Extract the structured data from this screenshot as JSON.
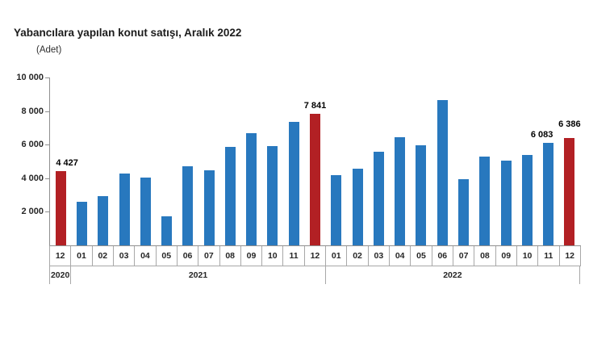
{
  "header": {
    "title": "Yabancılara yapılan konut satışı, Aralık 2022",
    "unit": "(Adet)"
  },
  "chart_data": {
    "type": "bar",
    "title": "Yabancılara yapılan konut satışı, Aralık 2022",
    "ylabel": "(Adet)",
    "xlabel": "",
    "ylim": [
      0,
      10000
    ],
    "grid": false,
    "legend": "none",
    "colors": {
      "default": "#2878BE",
      "highlight": "#B22024"
    },
    "yticks": [
      {
        "value": 2000,
        "label": "2 000"
      },
      {
        "value": 4000,
        "label": "4 000"
      },
      {
        "value": 6000,
        "label": "6 000"
      },
      {
        "value": 8000,
        "label": "8 000"
      },
      {
        "value": 10000,
        "label": "10 000"
      }
    ],
    "year_groups": [
      {
        "year": "2020",
        "count": 1
      },
      {
        "year": "2021",
        "count": 12
      },
      {
        "year": "2022",
        "count": 12
      }
    ],
    "points": [
      {
        "year": "2020",
        "month": "12",
        "value": 4427,
        "highlight": true,
        "label": "4 427",
        "label_dx": 8
      },
      {
        "year": "2021",
        "month": "01",
        "value": 2610,
        "highlight": false
      },
      {
        "year": "2021",
        "month": "02",
        "value": 2950,
        "highlight": false
      },
      {
        "year": "2021",
        "month": "03",
        "value": 4270,
        "highlight": false
      },
      {
        "year": "2021",
        "month": "04",
        "value": 4060,
        "highlight": false
      },
      {
        "year": "2021",
        "month": "05",
        "value": 1710,
        "highlight": false
      },
      {
        "year": "2021",
        "month": "06",
        "value": 4730,
        "highlight": false
      },
      {
        "year": "2021",
        "month": "07",
        "value": 4490,
        "highlight": false
      },
      {
        "year": "2021",
        "month": "08",
        "value": 5860,
        "highlight": false
      },
      {
        "year": "2021",
        "month": "09",
        "value": 6660,
        "highlight": false
      },
      {
        "year": "2021",
        "month": "10",
        "value": 5900,
        "highlight": false
      },
      {
        "year": "2021",
        "month": "11",
        "value": 7360,
        "highlight": false
      },
      {
        "year": "2021",
        "month": "12",
        "value": 7841,
        "highlight": true,
        "label": "7 841"
      },
      {
        "year": "2022",
        "month": "01",
        "value": 4190,
        "highlight": false
      },
      {
        "year": "2022",
        "month": "02",
        "value": 4590,
        "highlight": false
      },
      {
        "year": "2022",
        "month": "03",
        "value": 5570,
        "highlight": false
      },
      {
        "year": "2022",
        "month": "04",
        "value": 6450,
        "highlight": false
      },
      {
        "year": "2022",
        "month": "05",
        "value": 5960,
        "highlight": false
      },
      {
        "year": "2022",
        "month": "06",
        "value": 8630,
        "highlight": false
      },
      {
        "year": "2022",
        "month": "07",
        "value": 3940,
        "highlight": false
      },
      {
        "year": "2022",
        "month": "08",
        "value": 5270,
        "highlight": false
      },
      {
        "year": "2022",
        "month": "09",
        "value": 5050,
        "highlight": false
      },
      {
        "year": "2022",
        "month": "10",
        "value": 5380,
        "highlight": false
      },
      {
        "year": "2022",
        "month": "11",
        "value": 6083,
        "highlight": false,
        "label": "6 083",
        "label_dx": -8
      },
      {
        "year": "2022",
        "month": "12",
        "value": 6386,
        "highlight": true,
        "label": "6 386",
        "label_dy": -7
      }
    ]
  }
}
